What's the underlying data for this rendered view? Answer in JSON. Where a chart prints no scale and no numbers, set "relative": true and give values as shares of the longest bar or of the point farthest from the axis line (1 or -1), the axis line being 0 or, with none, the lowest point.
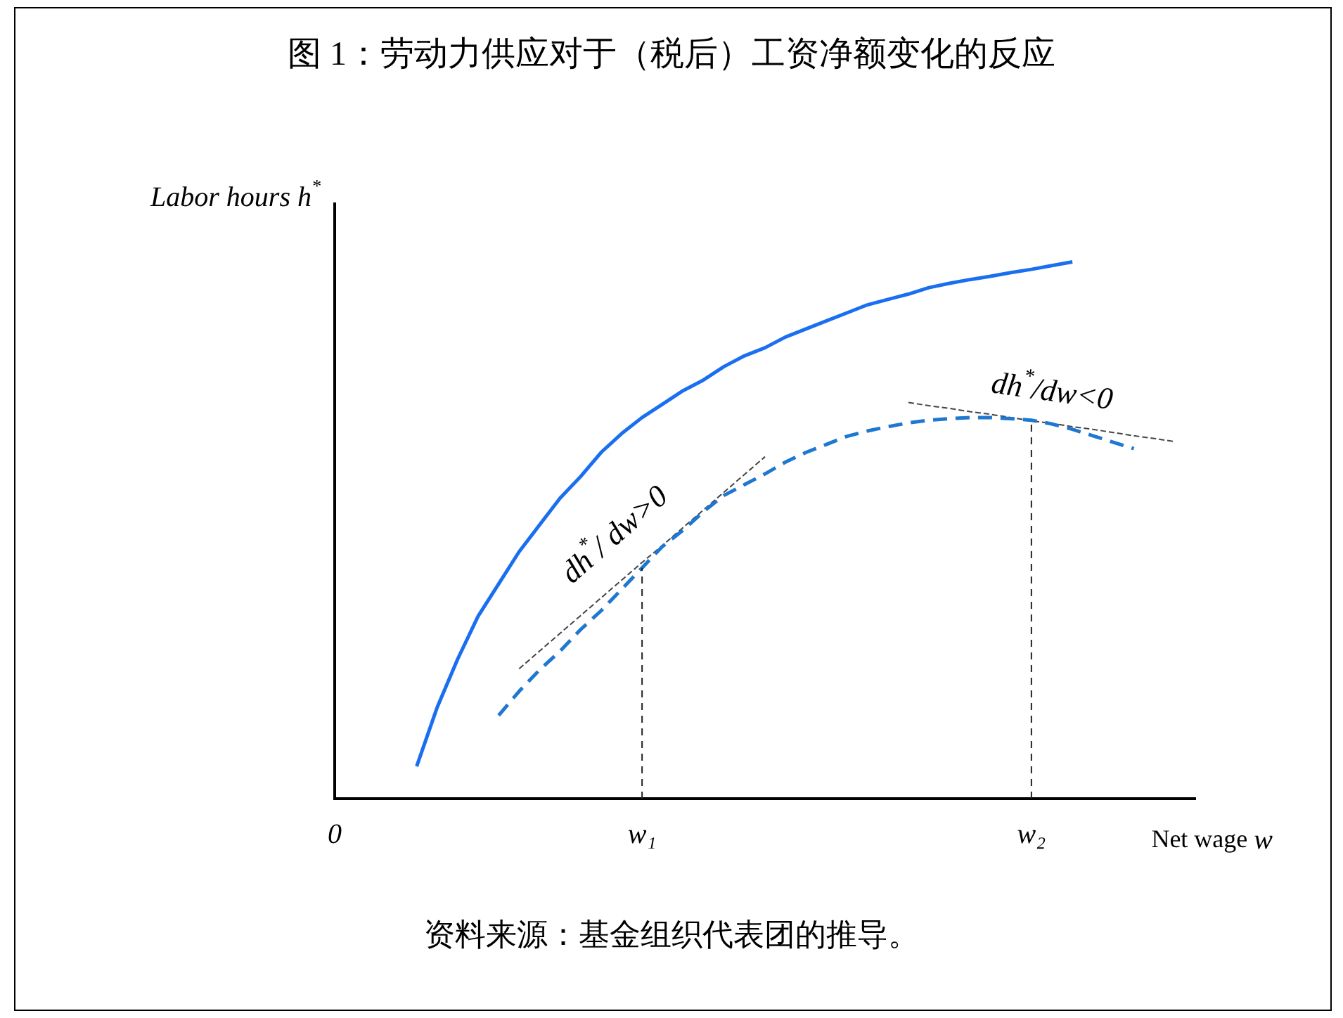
{
  "chart_data": {
    "type": "line",
    "relative": true,
    "title": "图 1：劳动力供应对于（税后）工资净额变化的反应",
    "xlabel": "Net wage w",
    "ylabel": "Labor hours h$^{*}$",
    "categories": [
      "0",
      null,
      null,
      null,
      null,
      null,
      null,
      null,
      null,
      null,
      null,
      null,
      null,
      null,
      null,
      "w₁",
      null,
      null,
      null,
      null,
      null,
      null,
      null,
      null,
      null,
      null,
      null,
      null,
      null,
      null,
      null,
      null,
      null,
      null,
      "w₂",
      null,
      null,
      null,
      null,
      null,
      null,
      null,
      null
    ],
    "grid": false,
    "legend": false,
    "marker": "none",
    "series": [
      {
        "color": "#1a6ff0",
        "line_style": "solid",
        "values": [
          null,
          null,
          null,
          null,
          0.06,
          0.17,
          0.26,
          0.34,
          0.4,
          0.46,
          0.51,
          0.56,
          0.6,
          0.645,
          0.68,
          0.71,
          0.735,
          0.76,
          0.78,
          0.805,
          0.825,
          0.84,
          0.86,
          0.875,
          0.89,
          0.905,
          0.92,
          0.93,
          0.94,
          0.952,
          0.96,
          0.967,
          0.973,
          0.98,
          0.986,
          0.993,
          1,
          null,
          null,
          null,
          null,
          null,
          null
        ]
      },
      {
        "color": "#1f78d0",
        "line_style": "dashed",
        "values": [
          null,
          null,
          null,
          null,
          null,
          null,
          null,
          null,
          0.155,
          0.2,
          0.24,
          0.275,
          0.315,
          0.35,
          0.39,
          0.43,
          0.47,
          0.5,
          0.535,
          0.565,
          0.585,
          0.605,
          0.627,
          0.645,
          0.66,
          0.675,
          0.685,
          0.693,
          0.7,
          0.705,
          0.708,
          0.71,
          0.71,
          0.708,
          0.705,
          0.698,
          0.688,
          0.676,
          0.664,
          0.652,
          null,
          null,
          null
        ]
      },
      {
        "color": "#444444",
        "line_style": "dashed",
        "values": [
          null,
          null,
          null,
          null,
          null,
          null,
          null,
          null,
          null,
          0.242,
          0.275,
          0.308,
          0.341,
          0.374,
          0.407,
          0.44,
          0.472,
          0.505,
          0.538,
          0.571,
          0.604,
          0.637,
          null,
          null,
          null,
          null,
          null,
          null,
          null,
          null,
          null,
          null,
          null,
          null,
          null,
          null,
          null,
          null,
          null,
          null,
          null,
          null,
          null
        ]
      },
      {
        "color": "#444444",
        "line_style": "dashed",
        "values": [
          null,
          null,
          null,
          null,
          null,
          null,
          null,
          null,
          null,
          null,
          null,
          null,
          null,
          null,
          null,
          null,
          null,
          null,
          null,
          null,
          null,
          null,
          null,
          null,
          null,
          null,
          null,
          null,
          0.738,
          0.732,
          0.727,
          0.721,
          0.716,
          0.71,
          0.704,
          0.699,
          0.693,
          0.688,
          0.682,
          0.676,
          0.671,
          0.665,
          null
        ]
      }
    ],
    "ref_lines": [
      {
        "axis": "x",
        "value": "w₁",
        "color": "#222222",
        "line_style": "dashed"
      },
      {
        "axis": "x",
        "value": "w₂",
        "color": "#222222",
        "line_style": "dashed"
      }
    ],
    "annotations": [
      "dh$^{*}$/ dw>0",
      "dh$^{*}$/dw<0",
      "资料来源：基金组织代表团的推导。"
    ]
  }
}
